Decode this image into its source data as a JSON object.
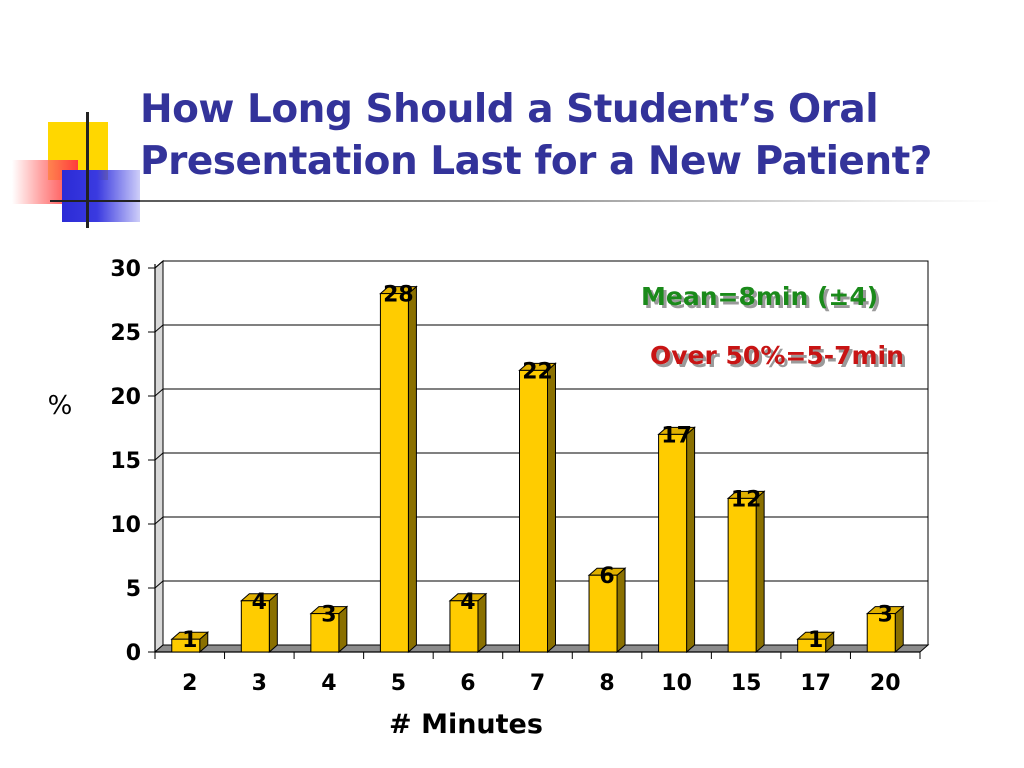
{
  "slide": {
    "title_line1": "How Long Should a Student’s Oral",
    "title_line2": "Presentation Last for a New Patient?"
  },
  "annotations": {
    "mean_text": "Mean=8min (±4)",
    "mean_color": "#1a8a1a",
    "over_text": "Over 50%=5-7min",
    "over_color": "#c81414"
  },
  "colors": {
    "title": "#33339a",
    "bar_front": "#ffcc00",
    "bar_side": "#8a7000",
    "bar_top": "#e0b000"
  },
  "chart_data": {
    "type": "bar",
    "title": "",
    "xlabel": "# Minutes",
    "ylabel": "%",
    "categories": [
      "2",
      "3",
      "4",
      "5",
      "6",
      "7",
      "8",
      "10",
      "15",
      "17",
      "20"
    ],
    "values": [
      1,
      4,
      3,
      28,
      4,
      22,
      6,
      17,
      12,
      1,
      3
    ],
    "value_labels": [
      "1",
      "4",
      "3",
      "28",
      "4",
      "22",
      "6",
      "17",
      "12",
      "1",
      "3"
    ],
    "ylim": [
      0,
      30
    ],
    "yticks": [
      "0",
      "5",
      "10",
      "15",
      "20",
      "25",
      "30"
    ],
    "grid": true,
    "legend": "none"
  }
}
